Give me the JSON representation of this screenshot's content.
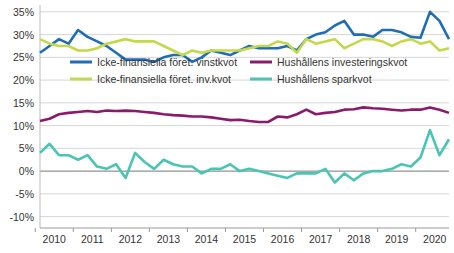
{
  "chart_data": {
    "type": "line",
    "categories": [
      "2010",
      null,
      null,
      null,
      "2011",
      null,
      null,
      null,
      "2012",
      null,
      null,
      null,
      "2013",
      null,
      null,
      null,
      "2014",
      null,
      null,
      null,
      "2015",
      null,
      null,
      null,
      "2016",
      null,
      null,
      null,
      "2017",
      null,
      null,
      null,
      "2018",
      null,
      null,
      null,
      "2019",
      null,
      null,
      null,
      "2020",
      null,
      null,
      null
    ],
    "ylim": [
      -12.5,
      36.5
    ],
    "yticks": [
      {
        "value": -10,
        "label": "-10%"
      },
      {
        "value": -5,
        "label": "-5%"
      },
      {
        "value": 0,
        "label": "0%"
      },
      {
        "value": 5,
        "label": "5%"
      },
      {
        "value": 10,
        "label": "10%"
      },
      {
        "value": 15,
        "label": "15%"
      },
      {
        "value": 20,
        "label": "20%"
      },
      {
        "value": 25,
        "label": "25%"
      },
      {
        "value": 30,
        "label": "30%"
      },
      {
        "value": 35,
        "label": "35%"
      }
    ],
    "grid": true,
    "series": [
      {
        "name": "Icke-finansiella föret. vinstkvot",
        "color": "#1f6db3",
        "values": [
          26,
          27.5,
          29,
          28,
          31,
          29.5,
          28.5,
          27.5,
          26,
          24.5,
          24.5,
          24.5,
          24,
          25,
          25.5,
          25.5,
          24,
          25,
          26.5,
          26,
          25.5,
          26.5,
          27.5,
          27,
          27,
          27,
          27.5,
          26.5,
          29,
          30,
          30.5,
          32,
          33,
          30,
          30,
          29.5,
          31,
          31,
          30.5,
          29.5,
          29.3,
          35,
          33,
          29
        ]
      },
      {
        "name": "Hushållens investeringskvot",
        "color": "#8c1a6a",
        "values": [
          11,
          11.5,
          12.5,
          12.8,
          13,
          13.2,
          13,
          13.3,
          13.2,
          13.3,
          13.2,
          13,
          12.8,
          12.5,
          12.3,
          12.2,
          12,
          12,
          11.8,
          11.5,
          11.2,
          11.3,
          11,
          10.8,
          10.8,
          12,
          11.8,
          12.5,
          13.5,
          12.5,
          12.8,
          13,
          13.5,
          13.6,
          14,
          13.8,
          13.7,
          13.5,
          13.3,
          13.5,
          13.5,
          14,
          13.5,
          12.8
        ]
      },
      {
        "name": "Icke-finansiella föret. inv.kvot",
        "color": "#c3d94b",
        "values": [
          29,
          28,
          27.5,
          27.5,
          26.5,
          26.5,
          27,
          28,
          28.5,
          29,
          28.5,
          28.5,
          28.5,
          27.5,
          26.5,
          25.5,
          26.5,
          26,
          26.5,
          26.5,
          26.5,
          26.5,
          27,
          27.5,
          27.5,
          28.5,
          28,
          26,
          29,
          28,
          28.5,
          29,
          27,
          28,
          29,
          29,
          28.5,
          27.5,
          28.5,
          29,
          28,
          28.5,
          26.5,
          27
        ]
      },
      {
        "name": "Hushållens sparkvot",
        "color": "#4bc5b3",
        "values": [
          4,
          6,
          3.5,
          3.5,
          2.5,
          3.5,
          1,
          0.5,
          1.5,
          -1.5,
          4,
          2,
          0.5,
          2.5,
          1.5,
          1,
          1,
          -0.5,
          0.5,
          0.5,
          1.5,
          0,
          0.5,
          0,
          -0.5,
          -1,
          -1.5,
          -0.5,
          -0.5,
          -0.5,
          0.5,
          -2.5,
          -0.5,
          -2,
          -0.5,
          0,
          0,
          0.5,
          1.5,
          1,
          3,
          9,
          3.5,
          7
        ]
      }
    ]
  }
}
